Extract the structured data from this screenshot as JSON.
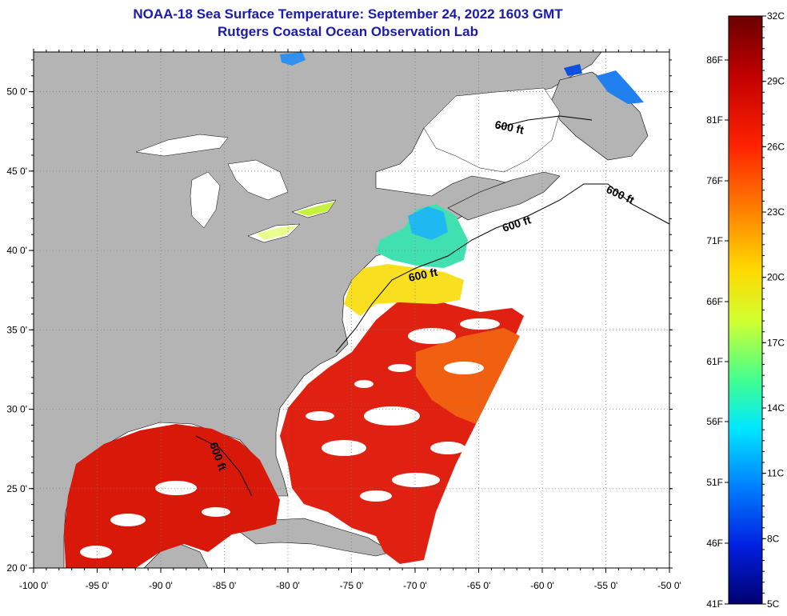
{
  "title": {
    "line1": "NOAA-18 Sea Surface Temperature:  September 24, 2022 1603 GMT",
    "line2": "Rutgers Coastal Ocean Observation Lab"
  },
  "map": {
    "lon_range": [
      -100,
      -50
    ],
    "lat_range": [
      20,
      52.5
    ],
    "lon_ticks": [
      "-100 0'",
      "-95 0'",
      "-90 0'",
      "-85 0'",
      "-80 0'",
      "-75 0'",
      "-70 0'",
      "-65 0'",
      "-60 0'",
      "-55 0'",
      "-50 0'"
    ],
    "lat_ticks": [
      "20 0'",
      "25 0'",
      "30 0'",
      "35 0'",
      "40 0'",
      "45 0'",
      "50 0'"
    ],
    "contour_labels": [
      "600 ft",
      "600 ft",
      "600 ft",
      "600 ft",
      "600 ft"
    ],
    "land_color": "#b4b4b4",
    "cloud_color": "#ffffff"
  },
  "colorbar": {
    "celsius_labels": [
      "32C",
      "29C",
      "26C",
      "23C",
      "20C",
      "17C",
      "14C",
      "11C",
      "8C",
      "5C"
    ],
    "fahrenheit_labels": [
      "86F",
      "81F",
      "76F",
      "71F",
      "66F",
      "61F",
      "56F",
      "51F",
      "46F",
      "41F"
    ],
    "range_c": [
      5,
      32
    ],
    "colors": [
      "#7a0000",
      "#c80000",
      "#ff2a00",
      "#ff8000",
      "#ffd000",
      "#e8ff20",
      "#60ff60",
      "#00f0ff",
      "#00a0ff",
      "#0040ff",
      "#0000c0",
      "#000070"
    ]
  }
}
